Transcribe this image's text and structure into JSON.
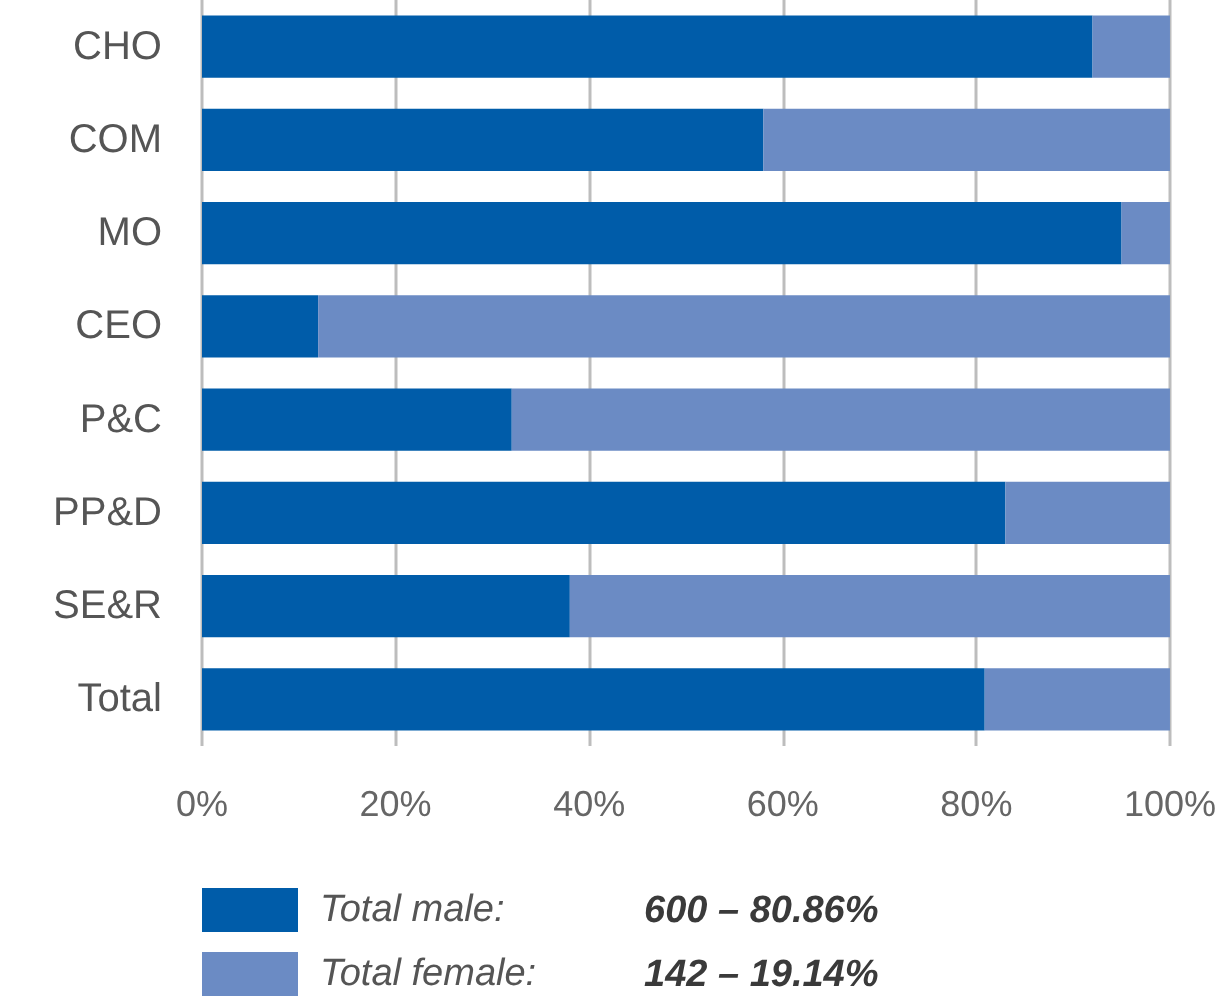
{
  "chart_data": {
    "type": "bar",
    "orientation": "horizontal",
    "stacked": true,
    "categories": [
      "CHO",
      "COM",
      "MO",
      "CEO",
      "P&C",
      "PP&D",
      "SE&R",
      "Total"
    ],
    "series": [
      {
        "name": "Total male:",
        "color": "#005ca9",
        "values": [
          92,
          58,
          95,
          12,
          32,
          83,
          38,
          80.86
        ]
      },
      {
        "name": "Total female:",
        "color": "#6b8bc4",
        "values": [
          8,
          42,
          5,
          88,
          68,
          17,
          62,
          19.14
        ]
      }
    ],
    "xlim": [
      0,
      100
    ],
    "xticks": [
      {
        "value": 0,
        "label": "0%"
      },
      {
        "value": 20,
        "label": "20%"
      },
      {
        "value": 40,
        "label": "40%"
      },
      {
        "value": 60,
        "label": "60%"
      },
      {
        "value": 80,
        "label": "80%"
      },
      {
        "value": 100,
        "label": "100%"
      }
    ],
    "grid": "x",
    "legend": "bottom",
    "annotations": [
      "600 – 80.86%",
      "142 – 19.14%"
    ]
  }
}
